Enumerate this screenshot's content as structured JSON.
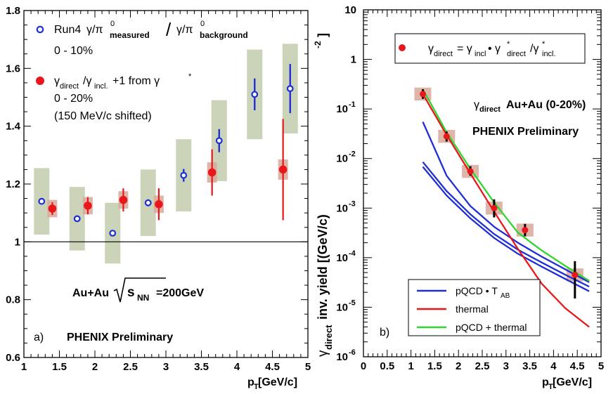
{
  "chart_data": [
    {
      "panel": "a)",
      "type": "scatter",
      "xlabel": "p_T [GeV/c]",
      "ylabel": "",
      "xlim": [
        1,
        5
      ],
      "ylim": [
        0.6,
        1.8
      ],
      "xticks": [
        "1",
        "1.5",
        "2",
        "2.5",
        "3",
        "3.5",
        "4",
        "4.5",
        "5"
      ],
      "yticks": [
        "0.6",
        "0.8",
        "1",
        "1.2",
        "1.4",
        "1.6",
        "1.8"
      ],
      "reference_line": 1,
      "series": [
        {
          "name": "Run4 γ/π0 measured / γ/π0 background, 0 - 10%",
          "marker": "open-circle",
          "color": "#1f2fd6",
          "points": [
            {
              "x": 1.25,
              "y": 1.14,
              "err": 0.0,
              "sys": 0.115
            },
            {
              "x": 1.75,
              "y": 1.08,
              "err": 0.0,
              "sys": 0.11
            },
            {
              "x": 2.25,
              "y": 1.03,
              "err": 0.0,
              "sys": 0.105
            },
            {
              "x": 2.75,
              "y": 1.135,
              "err": 0.012,
              "sys": 0.115
            },
            {
              "x": 3.25,
              "y": 1.23,
              "err": 0.022,
              "sys": 0.125
            },
            {
              "x": 3.75,
              "y": 1.35,
              "err": 0.04,
              "sys": 0.14
            },
            {
              "x": 4.25,
              "y": 1.51,
              "err": 0.055,
              "sys": 0.155
            },
            {
              "x": 4.75,
              "y": 1.53,
              "err": 0.085,
              "sys": 0.155
            }
          ]
        },
        {
          "name": "γdirect/γincl.+1 from γ*, 0 - 20% (150 MeV/c shifted)",
          "marker": "filled-circle",
          "color": "#e8171b",
          "points": [
            {
              "x": 1.4,
              "y": 1.115,
              "err": 0.022,
              "sys": 0.03
            },
            {
              "x": 1.9,
              "y": 1.125,
              "err": 0.03,
              "sys": 0.03
            },
            {
              "x": 2.4,
              "y": 1.145,
              "err": 0.04,
              "sys": 0.03
            },
            {
              "x": 2.9,
              "y": 1.13,
              "err": 0.055,
              "sys": 0.03
            },
            {
              "x": 3.65,
              "y": 1.24,
              "err": 0.08,
              "sys": 0.035
            },
            {
              "x": 4.65,
              "y": 1.25,
              "err": 0.175,
              "sys": 0.035
            }
          ]
        }
      ],
      "legend": {
        "run4_text": "Run4",
        "run4_formula_a": "γ/π",
        "run4_sub_a": "measured",
        "run4_slash": "/",
        "run4_formula_b": "γ/π",
        "run4_sub_b": "background",
        "run4_sup": "0",
        "run4_range": "0 - 10%",
        "red_gamma": "γ",
        "red_sub_direct": "direct",
        "red_mid": "/γ",
        "red_sub_incl": "incl.",
        "red_tail": "+1 from γ",
        "red_star": "*",
        "red_range": "0 - 20%",
        "red_note": "(150 MeV/c shifted)"
      },
      "annotation_sqrt": "Au+Au",
      "annotation_s": "s",
      "annotation_nn": "NN",
      "annotation_energy": "=200GeV",
      "preliminary": "PHENIX Preliminary"
    },
    {
      "panel": "b)",
      "type": "line",
      "xlabel": "p_T [GeV/c]",
      "ylabel": "γ_direct inv. yield [(GeV/c)^-2]",
      "xlim": [
        0,
        5
      ],
      "ylim_log10": [
        -6,
        1
      ],
      "xticks": [
        "0",
        "0.5",
        "1",
        "1.5",
        "2",
        "2.5",
        "3",
        "3.5",
        "4",
        "4.5",
        "5"
      ],
      "yticks": [
        {
          "base": "10",
          "exp": "-6"
        },
        {
          "base": "10",
          "exp": "-5"
        },
        {
          "base": "10",
          "exp": "-4"
        },
        {
          "base": "10",
          "exp": "-3"
        },
        {
          "base": "10",
          "exp": "-2"
        },
        {
          "base": "10",
          "exp": "-1"
        },
        {
          "base": "1",
          "exp": ""
        },
        {
          "base": "10",
          "exp": ""
        }
      ],
      "data_points": [
        {
          "x": 1.25,
          "y": 0.2,
          "lo": 0.16,
          "hi": 0.25
        },
        {
          "x": 1.75,
          "y": 0.028,
          "lo": 0.022,
          "hi": 0.035
        },
        {
          "x": 2.25,
          "y": 0.0055,
          "lo": 0.0045,
          "hi": 0.007
        },
        {
          "x": 2.75,
          "y": 0.001,
          "lo": 0.00065,
          "hi": 0.0015
        },
        {
          "x": 3.4,
          "y": 0.00036,
          "lo": 0.00027,
          "hi": 0.00048
        },
        {
          "x": 4.45,
          "y": 4.5e-05,
          "lo": 1.5e-05,
          "hi": 8.5e-05
        }
      ],
      "curves": [
        {
          "name": "pQCD • T_AB (upper)",
          "color": "#1f2fd6",
          "x": [
            1.25,
            1.75,
            2.25,
            2.75,
            3.25,
            3.75,
            4.25,
            4.75
          ],
          "y": [
            0.055,
            0.0045,
            0.0011,
            0.00042,
            0.0002,
            0.000105,
            5.8e-05,
            3.2e-05
          ]
        },
        {
          "name": "pQCD • T_AB (mid)",
          "color": "#1f2fd6",
          "x": [
            1.25,
            1.75,
            2.25,
            2.75,
            3.25,
            3.75,
            4.25,
            4.75
          ],
          "y": [
            0.0085,
            0.0022,
            0.00075,
            0.0003,
            0.000145,
            8e-05,
            4.5e-05,
            2.6e-05
          ]
        },
        {
          "name": "pQCD • T_AB (low)",
          "color": "#1f2fd6",
          "x": [
            1.25,
            1.75,
            2.25,
            2.75,
            3.25,
            3.75,
            4.25,
            4.75
          ],
          "y": [
            0.0068,
            0.0018,
            0.00062,
            0.00025,
            0.00012,
            6.6e-05,
            3.7e-05,
            2.1e-05
          ]
        },
        {
          "name": "thermal",
          "color": "#e8171b",
          "x": [
            1.25,
            1.75,
            2.25,
            2.75,
            3.25,
            3.75,
            4.25,
            4.75
          ],
          "y": [
            0.2,
            0.03,
            0.005,
            0.00085,
            0.00015,
            3e-05,
            9.5e-06,
            4e-06
          ]
        },
        {
          "name": "pQCD + thermal",
          "color": "#2fd62f",
          "x": [
            1.25,
            1.75,
            2.25,
            2.75,
            3.25,
            3.75,
            4.25,
            4.75
          ],
          "y": [
            0.25,
            0.034,
            0.0062,
            0.0013,
            0.00032,
            0.00014,
            6.8e-05,
            3.4e-05
          ]
        }
      ],
      "top_legend": {
        "gamma": "γ",
        "sub_direct": "direct",
        "eq": "= γ",
        "sub_incl": "incl",
        "bullet": " • γ",
        "star1": "*",
        "sub_direct2": "direct",
        "slash": "/γ",
        "star2": "*",
        "sub_incl2": "incl."
      },
      "bottom_legend": [
        {
          "label": "pQCD • T",
          "sub": "AB",
          "color": "#1f2fd6"
        },
        {
          "label": "thermal",
          "sub": "",
          "color": "#e8171b"
        },
        {
          "label": "pQCD + thermal",
          "sub": "",
          "color": "#2fd62f"
        }
      ],
      "title_gamma": "γ",
      "title_sub": "direct",
      "title_rest": " Au+Au (0-20%)",
      "preliminary": "PHENIX Preliminary",
      "ylabel_gamma": "γ",
      "ylabel_sub": "direct",
      "ylabel_rest": " inv. yield [(GeV/c)",
      "ylabel_exp": "-2",
      "ylabel_close": "]"
    }
  ],
  "labels": {
    "panel_a": "a)",
    "panel_b": "b)",
    "xlabel_p": "p",
    "xlabel_sub": "T",
    "xlabel_rest": " [GeV/c]"
  },
  "colors": {
    "blue": "#1f2fd6",
    "red": "#e8171b",
    "green": "#2fd62f",
    "sysband": "#cbd4b8",
    "sysbox_red": "#d9a89a"
  }
}
